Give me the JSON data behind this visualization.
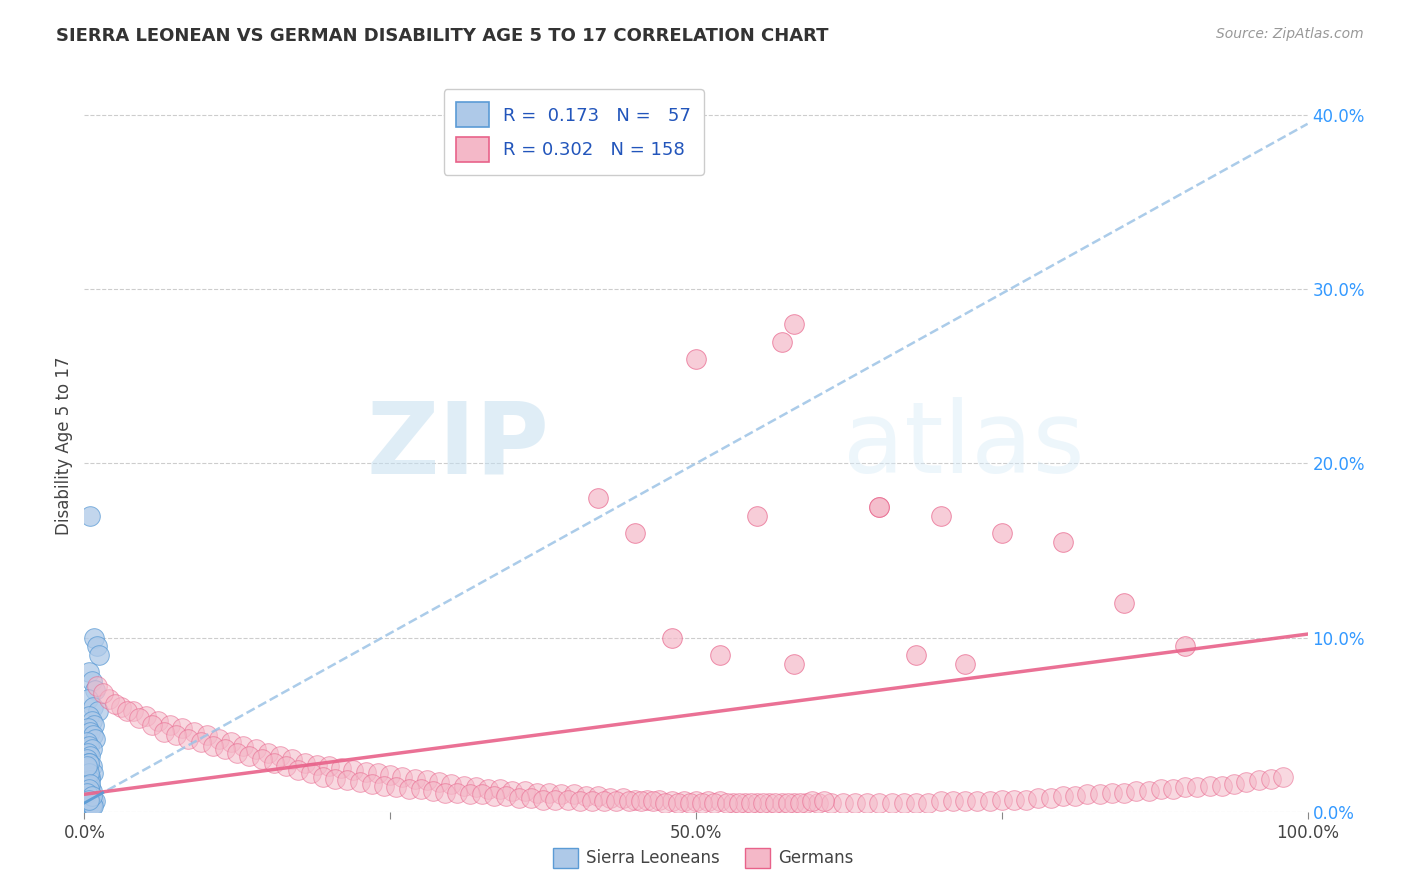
{
  "title": "SIERRA LEONEAN VS GERMAN DISABILITY AGE 5 TO 17 CORRELATION CHART",
  "source_text": "Source: ZipAtlas.com",
  "ylabel": "Disability Age 5 to 17",
  "xlim": [
    0,
    1.0
  ],
  "ylim": [
    0,
    0.42
  ],
  "xticks": [
    0.0,
    0.25,
    0.5,
    0.75,
    1.0
  ],
  "xtick_labels": [
    "0.0%",
    "",
    "50.0%",
    "",
    "100.0%"
  ],
  "ytick_labels_right": [
    "0.0%",
    "10.0%",
    "20.0%",
    "30.0%",
    "40.0%"
  ],
  "ytick_values_right": [
    0.0,
    0.1,
    0.2,
    0.3,
    0.4
  ],
  "legend_r1": "R =  0.173",
  "legend_n1": "N =   57",
  "legend_r2": "R = 0.302",
  "legend_n2": "N = 158",
  "watermark_zip": "ZIP",
  "watermark_atlas": "atlas",
  "blue_color": "#aec9e8",
  "blue_edge": "#5b9bd5",
  "blue_line_color": "#5b9bd5",
  "pink_color": "#f4b8c8",
  "pink_edge": "#e8628a",
  "pink_line_color": "#e8628a",
  "blue_trend_color": "#9dc3e6",
  "background_color": "#ffffff",
  "grid_color": "#c8c8c8",
  "sierra_x": [
    0.005,
    0.008,
    0.01,
    0.012,
    0.004,
    0.006,
    0.009,
    0.003,
    0.007,
    0.011,
    0.004,
    0.006,
    0.008,
    0.003,
    0.005,
    0.007,
    0.009,
    0.002,
    0.004,
    0.006,
    0.003,
    0.005,
    0.002,
    0.004,
    0.006,
    0.003,
    0.007,
    0.005,
    0.004,
    0.003,
    0.005,
    0.006,
    0.003,
    0.004,
    0.005,
    0.007,
    0.009,
    0.003,
    0.004,
    0.006,
    0.002,
    0.004,
    0.005,
    0.004,
    0.003,
    0.005,
    0.004,
    0.002,
    0.006,
    0.007,
    0.004,
    0.002,
    0.005,
    0.004,
    0.002,
    0.006,
    0.004
  ],
  "sierra_y": [
    0.17,
    0.1,
    0.095,
    0.09,
    0.08,
    0.075,
    0.07,
    0.065,
    0.06,
    0.058,
    0.055,
    0.052,
    0.05,
    0.048,
    0.046,
    0.044,
    0.042,
    0.04,
    0.038,
    0.036,
    0.034,
    0.032,
    0.03,
    0.028,
    0.026,
    0.024,
    0.022,
    0.02,
    0.018,
    0.016,
    0.014,
    0.012,
    0.01,
    0.009,
    0.008,
    0.007,
    0.006,
    0.005,
    0.004,
    0.003,
    0.025,
    0.028,
    0.018,
    0.015,
    0.012,
    0.01,
    0.008,
    0.006,
    0.004,
    0.003,
    0.022,
    0.026,
    0.016,
    0.013,
    0.011,
    0.009,
    0.007
  ],
  "german_x": [
    0.01,
    0.02,
    0.03,
    0.04,
    0.05,
    0.06,
    0.07,
    0.08,
    0.09,
    0.1,
    0.11,
    0.12,
    0.13,
    0.14,
    0.15,
    0.16,
    0.17,
    0.18,
    0.19,
    0.2,
    0.21,
    0.22,
    0.23,
    0.24,
    0.25,
    0.26,
    0.27,
    0.28,
    0.29,
    0.3,
    0.31,
    0.32,
    0.33,
    0.34,
    0.35,
    0.36,
    0.37,
    0.38,
    0.39,
    0.4,
    0.41,
    0.42,
    0.43,
    0.44,
    0.45,
    0.46,
    0.47,
    0.48,
    0.49,
    0.5,
    0.51,
    0.52,
    0.53,
    0.54,
    0.55,
    0.56,
    0.57,
    0.58,
    0.59,
    0.6,
    0.61,
    0.62,
    0.63,
    0.64,
    0.65,
    0.66,
    0.67,
    0.68,
    0.69,
    0.7,
    0.71,
    0.72,
    0.73,
    0.74,
    0.75,
    0.76,
    0.77,
    0.78,
    0.79,
    0.8,
    0.81,
    0.82,
    0.83,
    0.84,
    0.85,
    0.86,
    0.87,
    0.88,
    0.89,
    0.9,
    0.91,
    0.92,
    0.93,
    0.94,
    0.95,
    0.96,
    0.97,
    0.98,
    0.015,
    0.025,
    0.035,
    0.045,
    0.055,
    0.065,
    0.075,
    0.085,
    0.095,
    0.105,
    0.115,
    0.125,
    0.135,
    0.145,
    0.155,
    0.165,
    0.175,
    0.185,
    0.195,
    0.205,
    0.215,
    0.225,
    0.235,
    0.245,
    0.255,
    0.265,
    0.275,
    0.285,
    0.295,
    0.305,
    0.315,
    0.325,
    0.335,
    0.345,
    0.355,
    0.365,
    0.375,
    0.385,
    0.395,
    0.405,
    0.415,
    0.425,
    0.435,
    0.445,
    0.455,
    0.465,
    0.475,
    0.485,
    0.495,
    0.505,
    0.515,
    0.525,
    0.535,
    0.545,
    0.555,
    0.565,
    0.575,
    0.585,
    0.595,
    0.605
  ],
  "german_y": [
    0.072,
    0.065,
    0.06,
    0.058,
    0.055,
    0.052,
    0.05,
    0.048,
    0.046,
    0.044,
    0.042,
    0.04,
    0.038,
    0.036,
    0.034,
    0.032,
    0.03,
    0.028,
    0.027,
    0.026,
    0.025,
    0.024,
    0.023,
    0.022,
    0.021,
    0.02,
    0.019,
    0.018,
    0.017,
    0.016,
    0.015,
    0.014,
    0.013,
    0.013,
    0.012,
    0.012,
    0.011,
    0.011,
    0.01,
    0.01,
    0.009,
    0.009,
    0.008,
    0.008,
    0.007,
    0.007,
    0.007,
    0.006,
    0.006,
    0.006,
    0.006,
    0.006,
    0.005,
    0.005,
    0.005,
    0.005,
    0.005,
    0.005,
    0.005,
    0.005,
    0.005,
    0.005,
    0.005,
    0.005,
    0.005,
    0.005,
    0.005,
    0.005,
    0.005,
    0.006,
    0.006,
    0.006,
    0.006,
    0.006,
    0.007,
    0.007,
    0.007,
    0.008,
    0.008,
    0.009,
    0.009,
    0.01,
    0.01,
    0.011,
    0.011,
    0.012,
    0.012,
    0.013,
    0.013,
    0.014,
    0.014,
    0.015,
    0.015,
    0.016,
    0.017,
    0.018,
    0.019,
    0.02,
    0.068,
    0.062,
    0.058,
    0.054,
    0.05,
    0.046,
    0.044,
    0.042,
    0.04,
    0.038,
    0.036,
    0.034,
    0.032,
    0.03,
    0.028,
    0.026,
    0.024,
    0.022,
    0.02,
    0.019,
    0.018,
    0.017,
    0.016,
    0.015,
    0.014,
    0.013,
    0.013,
    0.012,
    0.011,
    0.011,
    0.01,
    0.01,
    0.009,
    0.009,
    0.008,
    0.008,
    0.007,
    0.007,
    0.007,
    0.006,
    0.006,
    0.006,
    0.006,
    0.006,
    0.006,
    0.006,
    0.005,
    0.005,
    0.005,
    0.005,
    0.005,
    0.005,
    0.005,
    0.005,
    0.005,
    0.005,
    0.005,
    0.005,
    0.006,
    0.006
  ],
  "german_outlier_x": [
    0.57,
    0.65,
    0.58,
    0.7,
    0.75,
    0.8,
    0.42,
    0.5,
    0.55,
    0.65,
    0.45,
    0.52,
    0.68,
    0.72,
    0.85,
    0.9,
    0.48,
    0.58
  ],
  "german_outlier_y": [
    0.27,
    0.175,
    0.28,
    0.17,
    0.16,
    0.155,
    0.18,
    0.26,
    0.17,
    0.175,
    0.16,
    0.09,
    0.09,
    0.085,
    0.12,
    0.095,
    0.1,
    0.085
  ],
  "blue_trend_intercept": 0.005,
  "blue_trend_slope": 0.39,
  "pink_trend_intercept": 0.01,
  "pink_trend_slope": 0.092
}
